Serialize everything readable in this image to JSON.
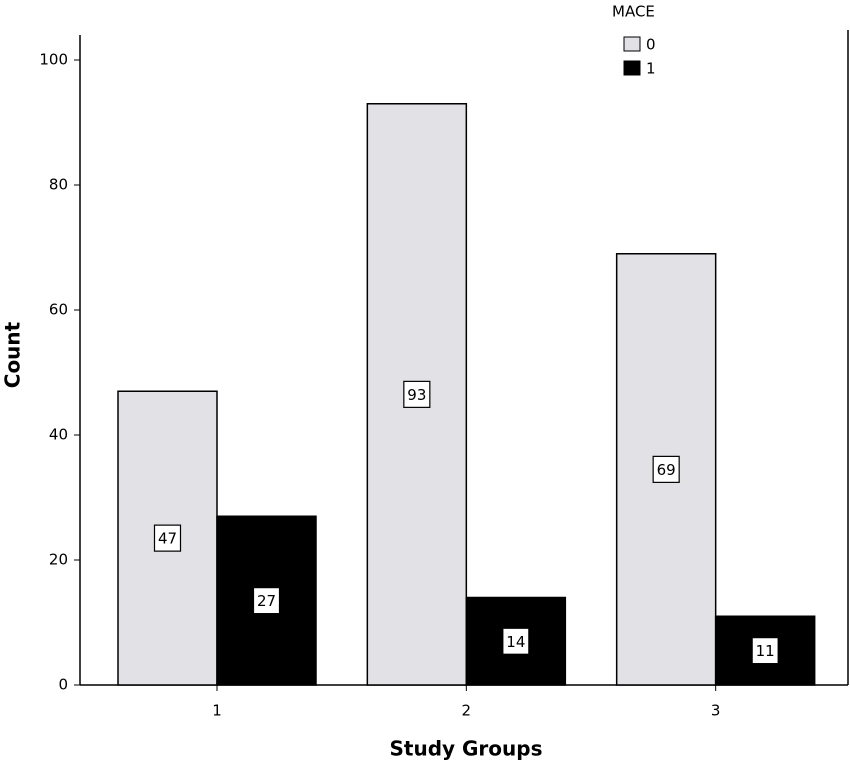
{
  "chart_data": {
    "type": "bar",
    "x_label": "Study Groups",
    "y_label": "Count",
    "legend_title": "MACE",
    "categories": [
      "1",
      "2",
      "3"
    ],
    "series": [
      {
        "name": "0",
        "color": "#e1e1e6",
        "values": [
          47,
          93,
          69
        ]
      },
      {
        "name": "1",
        "color": "#000000",
        "values": [
          27,
          14,
          11
        ]
      }
    ],
    "ylim": [
      0,
      104
    ],
    "yticks": [
      0,
      20,
      40,
      60,
      80,
      100
    ],
    "legend": "upper-right"
  }
}
